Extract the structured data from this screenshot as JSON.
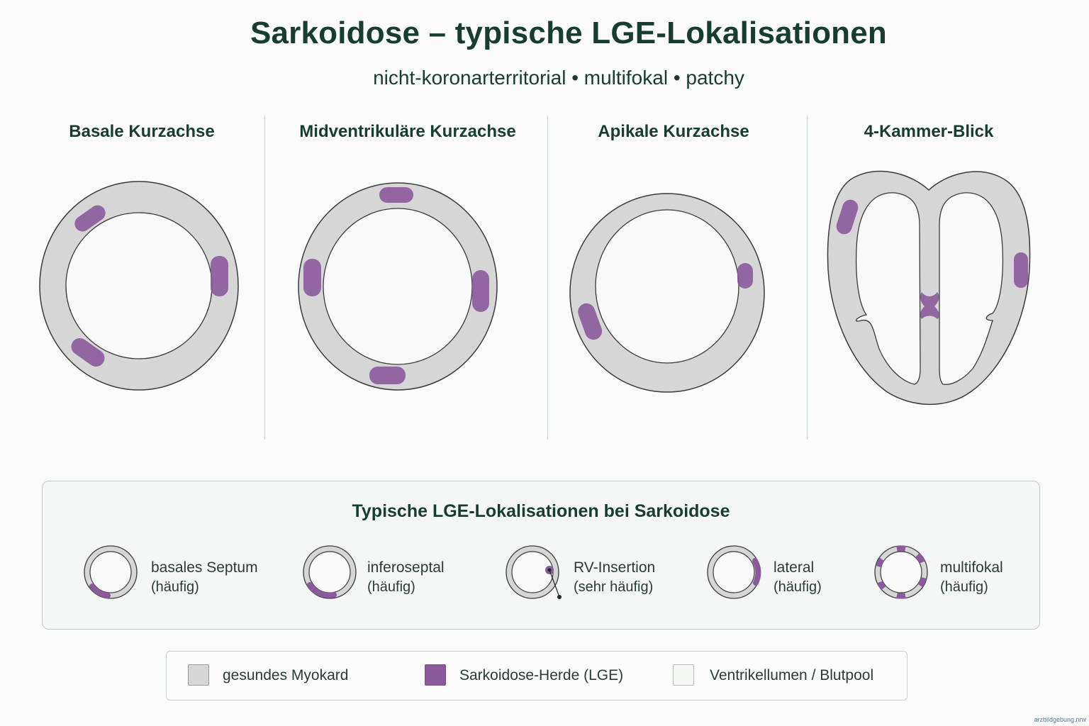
{
  "title": "Sarkoidose – typische LGE-Lokalisationen",
  "subtitle": "nicht-koronarterritorial • multifokal • patchy",
  "views": [
    {
      "title": "Basale Kurzachse"
    },
    {
      "title": "Midventrikuläre Kurzachse"
    },
    {
      "title": "Apikale Kurzachse"
    },
    {
      "title": "4-Kammer-Blick"
    }
  ],
  "summary": {
    "title": "Typische LGE-Lokalisationen bei Sarkoidose",
    "items": [
      {
        "label": "basales Septum",
        "frequency": "(häufig)"
      },
      {
        "label": "inferoseptal",
        "frequency": "(häufig)"
      },
      {
        "label": "RV-Insertion",
        "frequency": "(sehr häufig)"
      },
      {
        "label": "lateral",
        "frequency": "(häufig)"
      },
      {
        "label": "multifokal",
        "frequency": "(häufig)"
      }
    ]
  },
  "legend": {
    "healthy": "gesundes Myokard",
    "lesion": "Sarkoidose-Herde (LGE)",
    "lumen": "Ventrikellumen / Blutpool"
  },
  "colors": {
    "myocardium": "#d6d6d6",
    "lesion": "#8b5a9c",
    "lumen": "#f8f9f8",
    "title": "#173d33",
    "outline": "#3a3a3a"
  },
  "watermark": "arzbildgebung.nrw"
}
